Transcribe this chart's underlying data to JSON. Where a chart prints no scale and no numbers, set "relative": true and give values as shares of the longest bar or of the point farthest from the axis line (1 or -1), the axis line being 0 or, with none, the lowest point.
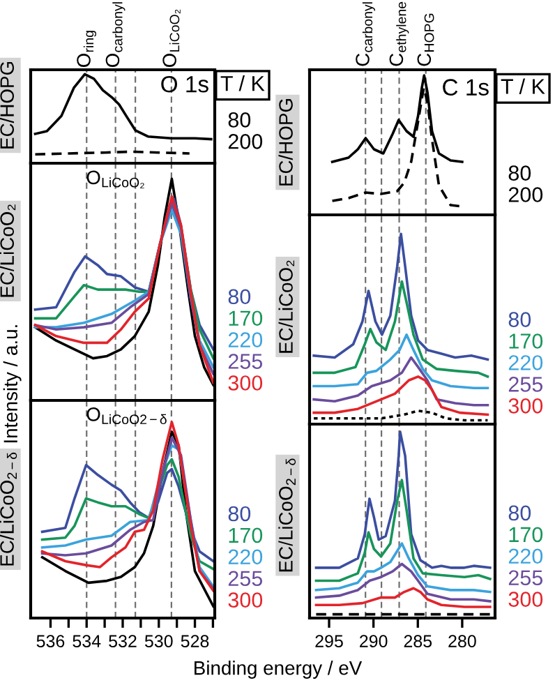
{
  "chart_data": [
    {
      "type": "line",
      "relative": true,
      "ylabel": "EC/HOPG",
      "legend_title": "T / K",
      "legend": "right",
      "tick_labels": false,
      "annotations": [
        "O 1s"
      ],
      "xlim": [
        537.1,
        526.9
      ],
      "ref_lines": [
        {
          "axis": "x",
          "value": 534.0,
          "label": "O$_{ring}$",
          "color": "#707070",
          "line_style": "dashed"
        },
        {
          "axis": "x",
          "value": 532.4,
          "label": "O$_{carbonyl}$",
          "color": "#707070",
          "line_style": "dashed"
        },
        {
          "axis": "x",
          "value": 531.3,
          "label": null,
          "color": "#707070",
          "line_style": "dashed"
        },
        {
          "axis": "x",
          "value": 529.3,
          "label": "O$_{LiCoO₂}$",
          "color": "#707070",
          "line_style": "dashed"
        }
      ],
      "series": [
        {
          "name": "80",
          "color": "#000000",
          "line_style": "solid",
          "x": [
            536.85,
            536.2,
            535.4,
            534.7,
            534.1,
            533.6,
            533.1,
            532.6,
            532.2,
            531.8,
            531.3,
            530.6,
            529.3,
            528.0,
            527.1
          ],
          "values": [
            0.33,
            0.36,
            0.53,
            0.85,
            1.0,
            0.95,
            0.82,
            0.74,
            0.66,
            0.53,
            0.37,
            0.3,
            0.28,
            0.28,
            0.27
          ]
        },
        {
          "name": "200",
          "color": "#000000",
          "line_style": "dashed",
          "x": [
            536.85,
            535.0,
            533.0,
            531.5,
            530.0,
            528.3
          ],
          "values": [
            0.1,
            0.11,
            0.12,
            0.13,
            0.12,
            0.11
          ]
        }
      ]
    },
    {
      "type": "line",
      "relative": true,
      "ylabel": "EC/HOPG",
      "legend_title": "T / K",
      "legend": "right",
      "tick_labels": false,
      "annotations": [
        "C 1s"
      ],
      "xlim": [
        297.2,
        276.3
      ],
      "ref_lines": [
        {
          "axis": "x",
          "value": 290.9,
          "label": "C$_{carbonyl}$",
          "color": "#707070",
          "line_style": "dashed"
        },
        {
          "axis": "x",
          "value": 289.1,
          "label": null,
          "color": "#707070",
          "line_style": "dashed"
        },
        {
          "axis": "x",
          "value": 287.1,
          "label": "C$_{ethylene}$",
          "color": "#707070",
          "line_style": "dashed"
        },
        {
          "axis": "x",
          "value": 284.1,
          "label": "C$_{HOPG}$",
          "color": "#707070",
          "line_style": "dashed"
        }
      ],
      "series": [
        {
          "name": "80",
          "color": "#000000",
          "line_style": "solid",
          "x": [
            294.64,
            292.81,
            291.76,
            290.88,
            289.94,
            288.89,
            287.84,
            287.16,
            286.27,
            285.49,
            284.97,
            284.55,
            284.29,
            283.92,
            283.4,
            282.62,
            281.31,
            280.0
          ],
          "values": [
            0.38,
            0.41,
            0.47,
            0.55,
            0.47,
            0.44,
            0.58,
            0.68,
            0.6,
            0.56,
            0.71,
            0.91,
            1.0,
            0.88,
            0.6,
            0.44,
            0.39,
            0.38
          ]
        },
        {
          "name": "200",
          "color": "#000000",
          "line_style": "dashed",
          "x": [
            294.64,
            292.81,
            290.88,
            289.15,
            287.32,
            286.54,
            285.75,
            284.97,
            284.34,
            283.92,
            283.4,
            282.62,
            281.31,
            280.0
          ],
          "values": [
            0.1,
            0.12,
            0.16,
            0.15,
            0.17,
            0.23,
            0.38,
            0.67,
            0.91,
            0.81,
            0.54,
            0.21,
            0.07,
            0.06
          ]
        }
      ]
    },
    {
      "type": "line",
      "relative": true,
      "ylabel": "EC/LiCoO₂",
      "legend": "right",
      "tick_labels": false,
      "annotations": [
        "O$_{LiCoO₂}$",
        "Intensity / a.u."
      ],
      "xlim": [
        537.1,
        526.9
      ],
      "ref_lines": [
        {
          "axis": "x",
          "value": 534.0,
          "color": "#707070",
          "line_style": "dashed"
        },
        {
          "axis": "x",
          "value": 532.4,
          "color": "#707070",
          "line_style": "dashed"
        },
        {
          "axis": "x",
          "value": 531.3,
          "color": "#707070",
          "line_style": "dashed"
        },
        {
          "axis": "x",
          "value": 529.3,
          "color": "#707070",
          "line_style": "dashed"
        }
      ],
      "series": [
        {
          "color": "#000000",
          "x": [
            536.85,
            535.69,
            534.67,
            533.64,
            532.87,
            532.1,
            531.33,
            530.56,
            530.05,
            529.67,
            529.28,
            528.9,
            528.38,
            528.0,
            527.49,
            526.98
          ],
          "values": [
            0.33,
            0.27,
            0.23,
            0.19,
            0.2,
            0.23,
            0.29,
            0.4,
            0.61,
            0.83,
            1.0,
            0.81,
            0.5,
            0.29,
            0.15,
            0.07
          ]
        },
        {
          "name": "80",
          "color": "#3b4ea0",
          "x": [
            536.85,
            535.69,
            534.67,
            534.08,
            533.38,
            532.87,
            532.1,
            531.33,
            530.56,
            529.92,
            529.41,
            529.15,
            528.77,
            528.23,
            527.74,
            526.98
          ],
          "values": [
            0.41,
            0.42,
            0.58,
            0.65,
            0.61,
            0.57,
            0.56,
            0.51,
            0.49,
            0.71,
            0.88,
            0.91,
            0.79,
            0.5,
            0.34,
            0.23
          ]
        },
        {
          "name": "170",
          "color": "#17955a",
          "x": [
            536.85,
            535.69,
            534.67,
            534.15,
            533.38,
            532.62,
            531.85,
            531.08,
            530.56,
            529.92,
            529.28,
            528.77,
            528.23,
            527.74,
            526.98
          ],
          "values": [
            0.37,
            0.37,
            0.47,
            0.52,
            0.5,
            0.5,
            0.5,
            0.49,
            0.49,
            0.71,
            0.87,
            0.78,
            0.5,
            0.32,
            0.19
          ]
        },
        {
          "name": "220",
          "color": "#3ba3dd",
          "x": [
            536.85,
            535.69,
            534.15,
            532.62,
            531.33,
            530.56,
            529.92,
            529.28,
            528.77,
            528.23,
            527.74,
            526.98
          ],
          "values": [
            0.33,
            0.33,
            0.35,
            0.39,
            0.45,
            0.49,
            0.71,
            0.86,
            0.75,
            0.46,
            0.27,
            0.15
          ]
        },
        {
          "name": "255",
          "color": "#6a4c9c",
          "x": [
            536.85,
            535.69,
            534.15,
            532.62,
            531.59,
            530.56,
            529.92,
            529.28,
            528.77,
            528.23,
            527.74,
            526.98
          ],
          "values": [
            0.34,
            0.32,
            0.33,
            0.35,
            0.42,
            0.48,
            0.71,
            0.89,
            0.78,
            0.46,
            0.25,
            0.12
          ]
        },
        {
          "name": "300",
          "color": "#e3242b",
          "x": [
            536.85,
            535.69,
            534.15,
            532.87,
            532.1,
            531.33,
            530.56,
            529.92,
            529.28,
            528.77,
            528.23,
            527.74,
            526.98
          ],
          "values": [
            0.34,
            0.29,
            0.26,
            0.26,
            0.32,
            0.4,
            0.46,
            0.71,
            0.92,
            0.79,
            0.49,
            0.25,
            0.08
          ]
        }
      ]
    },
    {
      "type": "line",
      "relative": true,
      "ylabel": "EC/LiCoO₂",
      "legend": "right",
      "tick_labels": false,
      "xlim": [
        297.2,
        276.3
      ],
      "ref_lines": [
        {
          "axis": "x",
          "value": 290.9,
          "color": "#707070",
          "line_style": "dashed"
        },
        {
          "axis": "x",
          "value": 289.1,
          "color": "#707070",
          "line_style": "dashed"
        },
        {
          "axis": "x",
          "value": 287.1,
          "color": "#707070",
          "line_style": "dashed"
        },
        {
          "axis": "x",
          "value": 284.1,
          "color": "#707070",
          "line_style": "dashed"
        }
      ],
      "series": [
        {
          "name": "80",
          "color": "#3b4ea0",
          "x": [
            296.72,
            294.37,
            292.28,
            291.24,
            290.56,
            289.78,
            289.04,
            288.1,
            287.32,
            286.9,
            286.43,
            285.75,
            284.97,
            283.92,
            282.35,
            280.79,
            278.97,
            277.13
          ],
          "values": [
            0.36,
            0.35,
            0.42,
            0.54,
            0.7,
            0.54,
            0.47,
            0.57,
            0.83,
            1.0,
            0.83,
            0.57,
            0.44,
            0.39,
            0.37,
            0.35,
            0.36,
            0.34
          ]
        },
        {
          "name": "170",
          "color": "#17955a",
          "x": [
            296.72,
            294.37,
            292.02,
            290.98,
            290.35,
            289.67,
            288.62,
            287.58,
            286.8,
            286.27,
            285.49,
            284.45,
            282.88,
            280.79,
            278.18,
            277.13
          ],
          "values": [
            0.27,
            0.27,
            0.3,
            0.42,
            0.5,
            0.43,
            0.39,
            0.54,
            0.75,
            0.64,
            0.47,
            0.34,
            0.29,
            0.28,
            0.27,
            0.25
          ]
        },
        {
          "name": "220",
          "color": "#3ba3dd",
          "x": [
            296.72,
            294.37,
            291.76,
            290.72,
            289.67,
            288.1,
            287.06,
            286.27,
            285.49,
            284.45,
            283.4,
            281.31,
            278.7,
            277.13
          ],
          "values": [
            0.2,
            0.2,
            0.21,
            0.27,
            0.28,
            0.34,
            0.39,
            0.47,
            0.39,
            0.29,
            0.23,
            0.2,
            0.19,
            0.19
          ]
        },
        {
          "name": "255",
          "color": "#6a4c9c",
          "x": [
            296.72,
            294.37,
            291.76,
            290.19,
            288.1,
            286.8,
            285.75,
            284.97,
            283.92,
            282.88,
            280.79,
            278.7,
            277.13
          ],
          "values": [
            0.13,
            0.12,
            0.15,
            0.2,
            0.23,
            0.27,
            0.35,
            0.3,
            0.23,
            0.13,
            0.11,
            0.1,
            0.1
          ]
        },
        {
          "name": "300",
          "color": "#e3242b",
          "x": [
            296.72,
            294.37,
            291.76,
            289.15,
            287.58,
            286.02,
            284.97,
            284.18,
            283.4,
            282.35,
            280.27,
            277.13
          ],
          "values": [
            0.06,
            0.06,
            0.08,
            0.13,
            0.16,
            0.23,
            0.25,
            0.23,
            0.18,
            0.09,
            0.06,
            0.05
          ]
        },
        {
          "color": "#000000",
          "line_style": "dotted",
          "x": [
            296.72,
            294.37,
            291.76,
            289.15,
            286.54,
            284.97,
            283.4,
            281.83,
            279.75,
            277.13
          ],
          "values": [
            0.03,
            0.03,
            0.03,
            0.03,
            0.05,
            0.07,
            0.06,
            0.03,
            0.02,
            0.02
          ]
        }
      ]
    },
    {
      "type": "line",
      "relative": true,
      "ylabel": "EC/LiCoO$_{2−δ}$",
      "xlabel": "Binding energy / eV",
      "legend": "right",
      "tick_labels": "x",
      "annotations": [
        "O$_{LiCoO2−δ}$"
      ],
      "xlim": [
        537.1,
        526.9
      ],
      "xticks": [
        536,
        {
          "value": 535,
          "label": null
        },
        534,
        {
          "value": 533,
          "label": null
        },
        532,
        {
          "value": 531,
          "label": null
        },
        530,
        {
          "value": 529,
          "label": null
        },
        528,
        {
          "value": 527,
          "label": null
        }
      ],
      "ref_lines": [
        {
          "axis": "x",
          "value": 534.0,
          "color": "#707070",
          "line_style": "dashed"
        },
        {
          "axis": "x",
          "value": 532.4,
          "color": "#707070",
          "line_style": "dashed"
        },
        {
          "axis": "x",
          "value": 531.3,
          "color": "#707070",
          "line_style": "dashed"
        },
        {
          "axis": "x",
          "value": 529.3,
          "color": "#707070",
          "line_style": "dashed"
        }
      ],
      "series": [
        {
          "color": "#000000",
          "x": [
            536.46,
            535.18,
            533.9,
            532.87,
            532.1,
            531.33,
            530.82,
            530.31,
            529.79,
            529.28,
            528.9,
            528.51,
            528.0,
            526.98
          ],
          "values": [
            0.31,
            0.24,
            0.18,
            0.19,
            0.21,
            0.26,
            0.33,
            0.47,
            0.74,
            0.95,
            0.88,
            0.55,
            0.24,
            0.06
          ]
        },
        {
          "name": "80",
          "color": "#3b4ea0",
          "x": [
            536.46,
            535.18,
            534.67,
            534.03,
            533.38,
            532.62,
            532.1,
            531.59,
            531.08,
            530.56,
            530.05,
            529.54,
            529.28,
            528.9,
            528.23,
            527.74,
            526.98
          ],
          "values": [
            0.44,
            0.46,
            0.61,
            0.78,
            0.73,
            0.68,
            0.65,
            0.59,
            0.54,
            0.51,
            0.59,
            0.74,
            0.76,
            0.67,
            0.45,
            0.34,
            0.29
          ]
        },
        {
          "name": "170",
          "color": "#17955a",
          "x": [
            536.46,
            535.18,
            534.67,
            534.03,
            533.38,
            532.62,
            531.85,
            531.08,
            530.56,
            530.05,
            529.54,
            529.28,
            528.9,
            528.23,
            527.74,
            526.98
          ],
          "values": [
            0.4,
            0.41,
            0.47,
            0.61,
            0.59,
            0.57,
            0.57,
            0.53,
            0.51,
            0.64,
            0.78,
            0.81,
            0.72,
            0.42,
            0.29,
            0.25
          ]
        },
        {
          "name": "220",
          "color": "#3ba3dd",
          "x": [
            536.46,
            535.18,
            534.03,
            532.62,
            531.59,
            530.56,
            529.92,
            529.28,
            528.9,
            528.23,
            527.74,
            526.98
          ],
          "values": [
            0.36,
            0.37,
            0.4,
            0.42,
            0.49,
            0.5,
            0.72,
            0.88,
            0.86,
            0.5,
            0.26,
            0.16
          ]
        },
        {
          "name": "255",
          "color": "#6a4c9c",
          "x": [
            536.46,
            535.18,
            534.03,
            532.62,
            531.59,
            530.82,
            530.31,
            529.79,
            529.28,
            528.77,
            528.23,
            527.74,
            526.98
          ],
          "values": [
            0.33,
            0.32,
            0.33,
            0.37,
            0.45,
            0.49,
            0.5,
            0.74,
            0.92,
            0.83,
            0.5,
            0.24,
            0.15
          ]
        },
        {
          "name": "300",
          "color": "#e3242b",
          "x": [
            536.46,
            535.18,
            534.03,
            533.26,
            532.62,
            531.85,
            531.33,
            530.82,
            530.31,
            529.79,
            529.28,
            528.9,
            528.23,
            527.74,
            526.98
          ],
          "values": [
            0.34,
            0.29,
            0.27,
            0.26,
            0.31,
            0.36,
            0.44,
            0.45,
            0.55,
            0.81,
            1.0,
            0.88,
            0.47,
            0.24,
            0.14
          ]
        }
      ]
    },
    {
      "type": "line",
      "relative": true,
      "ylabel": "EC/LiCoO$_{2−δ}$",
      "legend": "right",
      "tick_labels": "x",
      "xlim": [
        297.2,
        276.3
      ],
      "xticks": [
        295,
        290,
        285,
        280
      ],
      "ref_lines": [
        {
          "axis": "x",
          "value": 290.9,
          "color": "#707070",
          "line_style": "dashed"
        },
        {
          "axis": "x",
          "value": 289.1,
          "color": "#707070",
          "line_style": "dashed"
        },
        {
          "axis": "x",
          "value": 287.1,
          "color": "#707070",
          "line_style": "dashed"
        },
        {
          "axis": "x",
          "value": 284.1,
          "color": "#707070",
          "line_style": "dashed"
        }
      ],
      "series": [
        {
          "name": "80",
          "color": "#3b4ea0",
          "x": [
            296.46,
            293.85,
            291.76,
            290.98,
            290.45,
            289.94,
            289.41,
            288.62,
            287.58,
            287.16,
            287.0,
            286.43,
            285.75,
            284.71,
            283.4,
            282.35,
            281.31,
            279.75,
            278.7,
            276.86
          ],
          "values": [
            0.27,
            0.27,
            0.32,
            0.45,
            0.64,
            0.54,
            0.42,
            0.44,
            0.63,
            0.87,
            1.0,
            0.87,
            0.45,
            0.31,
            0.27,
            0.28,
            0.27,
            0.27,
            0.28,
            0.27
          ]
        },
        {
          "name": "170",
          "color": "#17955a",
          "x": [
            296.46,
            293.85,
            291.76,
            290.98,
            290.56,
            289.94,
            289.15,
            288.1,
            287.32,
            286.8,
            286.27,
            285.49,
            284.45,
            282.35,
            279.75,
            278.18,
            276.86
          ],
          "values": [
            0.2,
            0.2,
            0.24,
            0.35,
            0.46,
            0.37,
            0.33,
            0.4,
            0.63,
            0.74,
            0.58,
            0.32,
            0.24,
            0.23,
            0.22,
            0.23,
            0.21
          ]
        },
        {
          "name": "220",
          "color": "#3ba3dd",
          "x": [
            296.46,
            293.85,
            291.76,
            290.72,
            289.94,
            289.15,
            288.1,
            287.32,
            286.8,
            286.02,
            284.97,
            283.92,
            281.31,
            278.7,
            276.86
          ],
          "values": [
            0.15,
            0.16,
            0.19,
            0.25,
            0.25,
            0.27,
            0.3,
            0.36,
            0.4,
            0.32,
            0.23,
            0.17,
            0.15,
            0.15,
            0.14
          ]
        },
        {
          "name": "255",
          "color": "#6a4c9c",
          "x": [
            296.46,
            293.85,
            291.76,
            290.45,
            289.15,
            287.84,
            286.8,
            285.75,
            284.97,
            283.92,
            281.31,
            278.7,
            276.86
          ],
          "values": [
            0.11,
            0.12,
            0.15,
            0.2,
            0.22,
            0.25,
            0.29,
            0.25,
            0.2,
            0.13,
            0.1,
            0.1,
            0.09
          ]
        },
        {
          "name": "300",
          "color": "#e3242b",
          "x": [
            296.46,
            293.85,
            291.24,
            289.15,
            287.58,
            286.54,
            285.49,
            284.71,
            283.92,
            282.35,
            279.75,
            276.86
          ],
          "values": [
            0.07,
            0.07,
            0.08,
            0.11,
            0.11,
            0.14,
            0.16,
            0.14,
            0.1,
            0.07,
            0.06,
            0.06
          ]
        },
        {
          "color": "#000000",
          "line_style": "dashed",
          "x": [
            296.46,
            290.19,
            284.97,
            279.75,
            276.86
          ],
          "values": [
            0.02,
            0.02,
            0.02,
            0.02,
            0.02
          ]
        }
      ]
    }
  ]
}
